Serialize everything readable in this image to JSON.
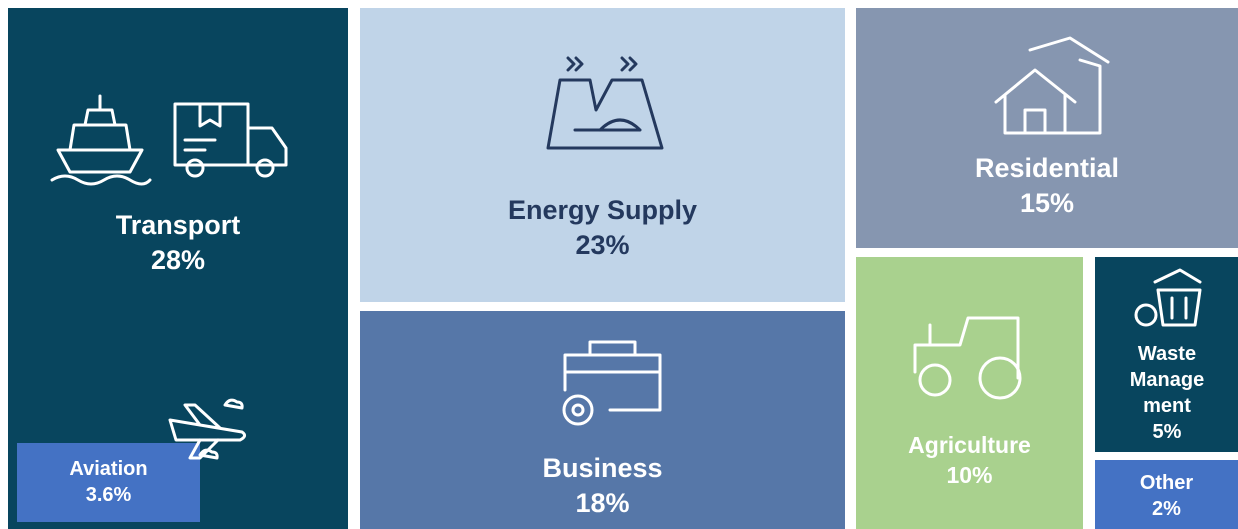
{
  "chart_data": {
    "type": "treemap",
    "categories": [
      "Transport",
      "Energy Supply",
      "Business",
      "Residential",
      "Agriculture",
      "Waste Management",
      "Other",
      "Aviation"
    ],
    "values": [
      28,
      23,
      18,
      15,
      10,
      5,
      2,
      3.6
    ],
    "value_labels": [
      "28%",
      "23%",
      "18%",
      "15%",
      "10%",
      "5%",
      "2%",
      "3.6%"
    ],
    "colors": [
      "#08455e",
      "#c0d4e8",
      "#5677a8",
      "#8696b0",
      "#a9d18e",
      "#08455e",
      "#4472c4",
      "#4472c4"
    ]
  }
}
